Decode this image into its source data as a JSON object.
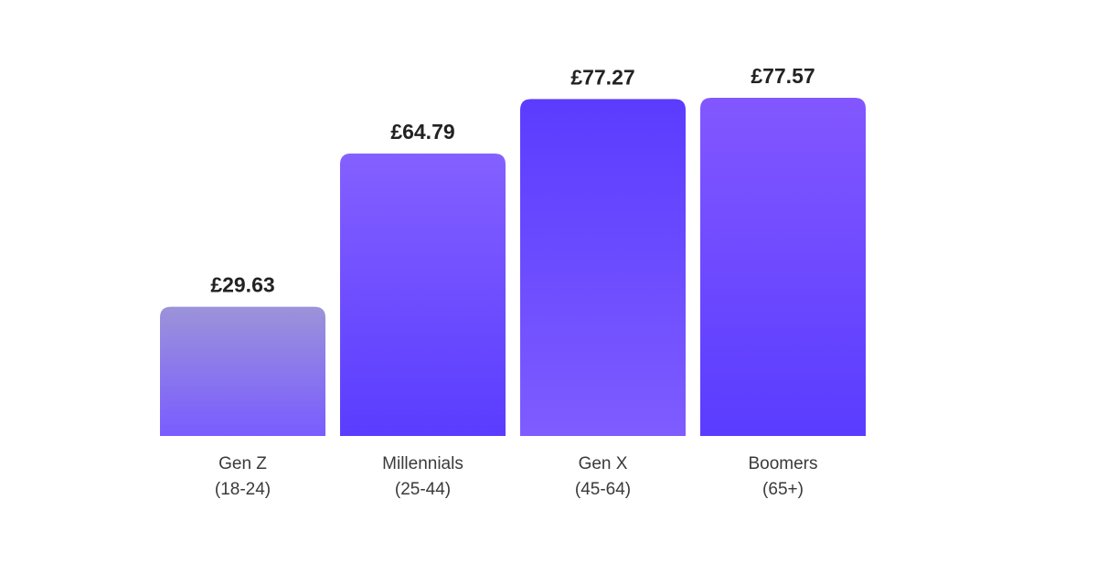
{
  "chart_data": {
    "type": "bar",
    "categories": [
      {
        "name": "Gen Z",
        "range": "(18-24)"
      },
      {
        "name": "Millennials",
        "range": "(25-44)"
      },
      {
        "name": "Gen X",
        "range": "(45-64)"
      },
      {
        "name": "Boomers",
        "range": "(65+)"
      }
    ],
    "values": [
      29.63,
      64.79,
      77.27,
      77.57
    ],
    "value_labels": [
      "£29.63",
      "£64.79",
      "£77.27",
      "£77.57"
    ],
    "title": "",
    "xlabel": "",
    "ylabel": "",
    "ylim": [
      0,
      100
    ],
    "grid": false,
    "bar_colors": [
      {
        "top": "#9b93d9",
        "bottom": "#7a5cff"
      },
      {
        "top": "#8460ff",
        "bottom": "#5a3cff"
      },
      {
        "top": "#5b3cff",
        "bottom": "#7e5cff"
      },
      {
        "top": "#8257ff",
        "bottom": "#5a3cff"
      }
    ]
  }
}
